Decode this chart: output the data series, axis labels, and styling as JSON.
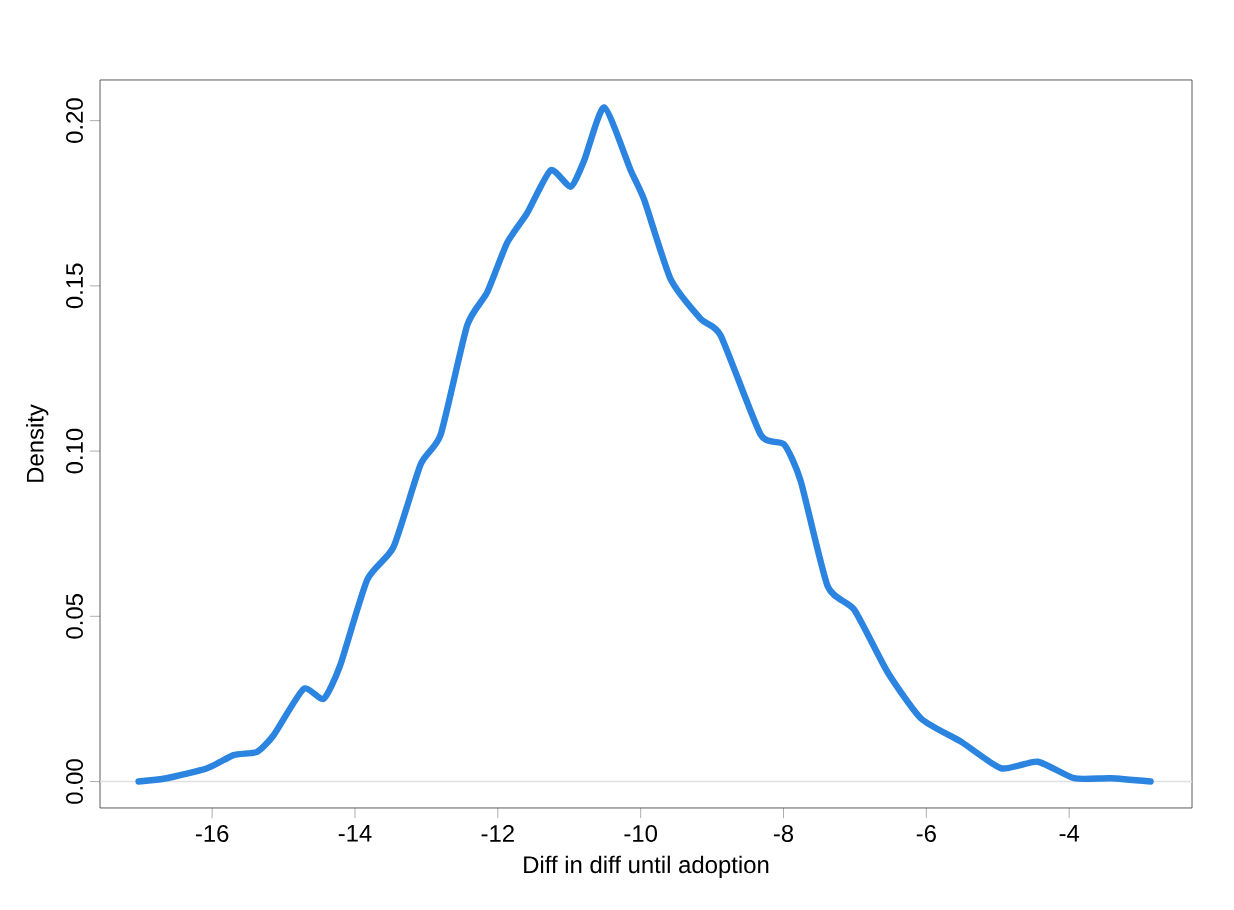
{
  "chart_data": {
    "type": "line",
    "xlabel": "Diff in diff until adoption",
    "ylabel": "Density",
    "x": [
      -17.03,
      -16.64,
      -16.07,
      -15.7,
      -15.37,
      -15.14,
      -14.72,
      -14.44,
      -14.21,
      -13.83,
      -13.46,
      -13.08,
      -12.8,
      -12.43,
      -12.15,
      -11.87,
      -11.59,
      -11.26,
      -10.98,
      -10.79,
      -10.51,
      -10.14,
      -9.95,
      -9.58,
      -9.16,
      -8.88,
      -8.32,
      -7.99,
      -7.76,
      -7.38,
      -7.01,
      -6.54,
      -6.07,
      -5.51,
      -4.95,
      -4.44,
      -3.93,
      -3.42,
      -2.86
    ],
    "series": [
      {
        "color": "#2b84e0",
        "values": [
          0.0,
          0.001,
          0.004,
          0.008,
          0.009,
          0.014,
          0.028,
          0.025,
          0.035,
          0.061,
          0.071,
          0.096,
          0.105,
          0.138,
          0.148,
          0.163,
          0.172,
          0.185,
          0.18,
          0.188,
          0.204,
          0.185,
          0.176,
          0.152,
          0.14,
          0.135,
          0.105,
          0.102,
          0.091,
          0.059,
          0.052,
          0.033,
          0.019,
          0.012,
          0.004,
          0.006,
          0.001,
          0.001,
          0.0
        ]
      }
    ],
    "xlim": [
      -17.57,
      -2.28
    ],
    "ylim": [
      -0.008,
      0.2123
    ],
    "xticks": [
      -16,
      -14,
      -12,
      -10,
      -8,
      -6,
      -4
    ],
    "yticks": [
      {
        "value": 0,
        "label": "0.00"
      },
      {
        "value": 0.05,
        "label": "0.05"
      },
      {
        "value": 0.1,
        "label": "0.10"
      },
      {
        "value": 0.15,
        "label": "0.15"
      },
      {
        "value": 0.2,
        "label": "0.20"
      }
    ],
    "ref_lines": [
      {
        "axis": "y",
        "value": 0,
        "color": "#e0e0e0"
      }
    ],
    "marker": "none",
    "line_style": "solid"
  }
}
